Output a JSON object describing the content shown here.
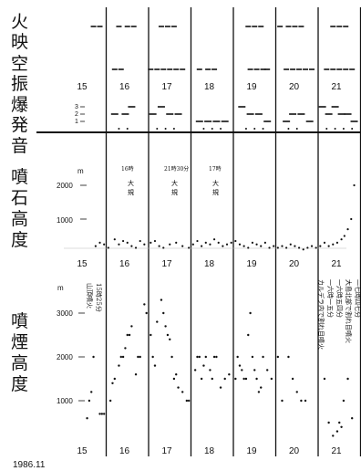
{
  "figure": {
    "date_label": "1986.11",
    "days": [
      "15",
      "16",
      "17",
      "18",
      "19",
      "20",
      "21"
    ]
  },
  "chart_data": [
    {
      "type": "scatter",
      "panel": "incandescence",
      "ylabel": "火映",
      "x_unit": "day",
      "series": [
        {
          "level": "high",
          "x": [
            15.7,
            15.85,
            16.3,
            16.5,
            16.65,
            17.3,
            17.45,
            17.6,
            19.35,
            19.5,
            19.65,
            20.1,
            20.3,
            20.45,
            20.6,
            21.35,
            21.5,
            21.65
          ]
        },
        {
          "level": "low",
          "x": [
            16.2,
            16.35,
            17.05,
            17.2,
            17.35,
            17.5,
            17.65,
            17.8,
            18.2,
            18.4,
            18.55,
            19.4,
            19.55,
            19.7,
            19.8,
            20.25,
            20.4,
            20.55,
            20.7,
            20.85,
            21.2,
            21.35,
            21.5,
            21.65,
            21.8
          ]
        }
      ]
    },
    {
      "type": "scatter",
      "panel": "air-shock",
      "ylabel": "空振",
      "x_unit": "day",
      "y_ticks": [
        1,
        2,
        3
      ],
      "x": [
        16.2,
        16.45,
        16.6,
        17.1,
        17.3,
        17.5,
        17.7,
        18.2,
        18.4,
        18.6,
        18.8,
        19.2,
        19.4,
        19.6,
        19.8,
        20.25,
        20.4,
        20.6,
        20.8,
        21.1,
        21.25,
        21.4,
        21.55,
        21.7,
        21.85
      ],
      "y": [
        2,
        2,
        3,
        2,
        3,
        2,
        2,
        1,
        1,
        1,
        1,
        3,
        2,
        2,
        1,
        1,
        2,
        2,
        1,
        3,
        2,
        3,
        2,
        2,
        1
      ]
    },
    {
      "type": "scatter",
      "panel": "explosion-sound",
      "ylabel": "爆発音",
      "x_unit": "day",
      "x": [
        16.3,
        16.5,
        17.2,
        17.4,
        17.6,
        18.3,
        18.5,
        18.7,
        19.3,
        19.5,
        19.7,
        20.3,
        20.5,
        21.2,
        21.4,
        21.6,
        21.8
      ],
      "y": [
        1,
        1,
        1,
        1,
        1,
        1,
        1,
        1,
        1,
        1,
        1,
        1,
        1,
        1,
        1,
        1,
        1
      ]
    },
    {
      "type": "scatter",
      "panel": "ejecta-height",
      "ylabel": "噴石高度",
      "unit_label": "m",
      "x_unit": "day",
      "yticks": [
        "1000",
        "2000"
      ],
      "ylim": [
        0,
        2700
      ],
      "annotations": [
        "16時",
        "大",
        "規",
        "21時30分",
        "大",
        "規",
        "17時",
        "大",
        "規"
      ],
      "x": [
        15.75,
        15.85,
        15.95,
        16.05,
        16.2,
        16.3,
        16.4,
        16.5,
        16.6,
        16.7,
        16.8,
        16.9,
        17.05,
        17.15,
        17.25,
        17.35,
        17.5,
        17.65,
        17.8,
        17.95,
        18.05,
        18.15,
        18.25,
        18.35,
        18.45,
        18.55,
        18.65,
        18.75,
        18.85,
        18.95,
        19.05,
        19.15,
        19.25,
        19.35,
        19.45,
        19.55,
        19.65,
        19.75,
        19.85,
        19.95,
        20.05,
        20.15,
        20.25,
        20.35,
        20.45,
        20.55,
        20.65,
        20.75,
        20.85,
        20.95,
        21.05,
        21.15,
        21.25,
        21.35,
        21.45,
        21.55,
        21.62,
        21.7,
        21.78,
        21.85
      ],
      "y": [
        200,
        300,
        250,
        150,
        400,
        250,
        350,
        300,
        200,
        150,
        350,
        250,
        300,
        350,
        200,
        150,
        250,
        300,
        200,
        150,
        250,
        350,
        200,
        300,
        250,
        400,
        300,
        200,
        250,
        300,
        350,
        250,
        200,
        150,
        300,
        250,
        200,
        300,
        150,
        200,
        150,
        200,
        150,
        250,
        200,
        150,
        100,
        150,
        200,
        150,
        200,
        300,
        200,
        250,
        300,
        400,
        500,
        700,
        1000,
        2000
      ]
    },
    {
      "type": "scatter",
      "panel": "plume-height",
      "ylabel": "噴煙高度",
      "unit_label": "m",
      "x_unit": "day",
      "yticks": [
        "1000",
        "2000",
        "3000"
      ],
      "ylim": [
        0,
        3500
      ],
      "annotations": [
        "山頂噴火",
        "15時25分",
        "カルデラ内で割れ目噴火",
        "一六時一五分",
        "一六時五四分",
        "大島北部で割れ目噴火",
        "一七時四七分"
      ],
      "x": [
        15.55,
        15.6,
        15.65,
        15.7,
        15.85,
        15.9,
        15.95,
        16.1,
        16.15,
        16.2,
        16.3,
        16.35,
        16.4,
        16.45,
        16.5,
        16.55,
        16.6,
        16.7,
        16.75,
        16.8,
        16.9,
        16.95,
        17.05,
        17.1,
        17.15,
        17.2,
        17.3,
        17.35,
        17.4,
        17.45,
        17.5,
        17.55,
        17.6,
        17.65,
        17.7,
        17.8,
        17.9,
        17.95,
        18.1,
        18.15,
        18.2,
        18.25,
        18.3,
        18.35,
        18.45,
        18.5,
        18.55,
        18.6,
        18.7,
        18.8,
        18.9,
        19.05,
        19.1,
        19.15,
        19.2,
        19.25,
        19.3,
        19.35,
        19.4,
        19.45,
        19.5,
        19.55,
        19.6,
        19.65,
        19.7,
        19.8,
        19.9,
        20.05,
        20.15,
        20.3,
        20.4,
        20.5,
        20.6,
        20.7,
        21.15,
        21.25,
        21.35,
        21.45,
        21.5,
        21.55,
        21.6,
        21.7,
        21.8
      ],
      "y": [
        600,
        1000,
        1200,
        2000,
        700,
        700,
        700,
        1000,
        1400,
        1500,
        1800,
        2000,
        2000,
        2200,
        2500,
        2500,
        2700,
        1600,
        2000,
        2000,
        3200,
        3000,
        2500,
        2000,
        1800,
        2800,
        3300,
        3000,
        2700,
        2500,
        2400,
        2000,
        1500,
        1600,
        1300,
        1200,
        1000,
        1000,
        1700,
        2000,
        2000,
        1500,
        1800,
        2000,
        1700,
        1500,
        2000,
        2000,
        1300,
        1500,
        1600,
        1500,
        2000,
        1800,
        1700,
        1500,
        1500,
        2500,
        3000,
        2000,
        1700,
        1500,
        1200,
        1300,
        2000,
        1700,
        1500,
        2000,
        1000,
        2000,
        1500,
        1200,
        1000,
        1000,
        1500,
        500,
        200,
        300,
        500,
        400,
        1000,
        1500,
        600
      ]
    }
  ]
}
